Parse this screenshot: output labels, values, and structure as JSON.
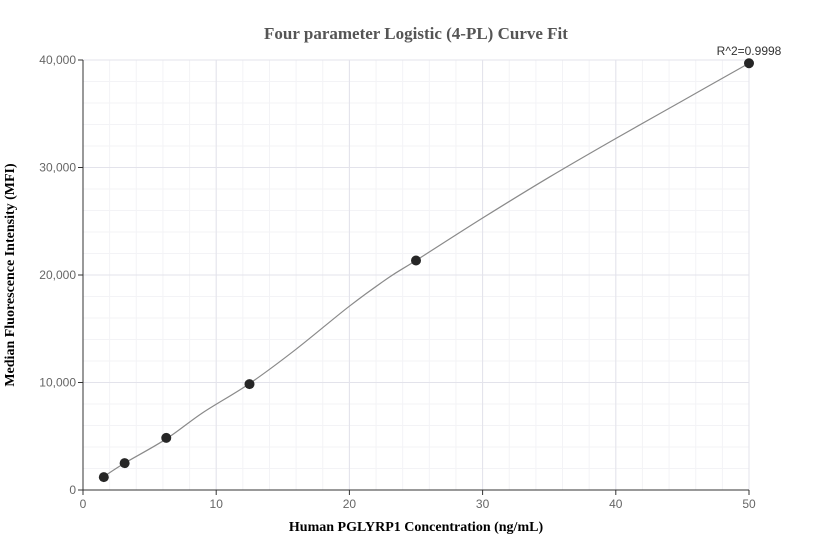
{
  "chart_data": {
    "type": "scatter",
    "title": "Four parameter Logistic (4-PL) Curve Fit",
    "xlabel": "Human PGLYRP1 Concentration (ng/mL)",
    "ylabel": "Median Fluorescence Intensity (MFI)",
    "xlim": [
      0,
      50
    ],
    "ylim": [
      0,
      40000
    ],
    "x_ticks": [
      0,
      10,
      20,
      30,
      40,
      50
    ],
    "x_tick_labels": [
      "0",
      "10",
      "20",
      "30",
      "40",
      "50"
    ],
    "y_ticks": [
      0,
      10000,
      20000,
      30000,
      40000
    ],
    "y_tick_labels": [
      "0",
      "10,000",
      "20,000",
      "30,000",
      "40,000"
    ],
    "x_minor_step": 2,
    "y_minor_step": 2000,
    "grid": true,
    "legend": "none",
    "annotation": "R^2=0.9998",
    "points": {
      "x": [
        1.5625,
        3.125,
        6.25,
        12.5,
        25,
        50
      ],
      "y": [
        1200,
        2500,
        4850,
        9850,
        21350,
        39700
      ]
    },
    "fit_curve": {
      "x": [
        1.5625,
        3.125,
        6.25,
        9,
        12.5,
        16,
        20,
        23,
        25,
        30,
        35,
        40,
        45,
        50
      ],
      "y": [
        1250,
        2500,
        4750,
        7200,
        9900,
        13100,
        17100,
        19800,
        21350,
        25300,
        29100,
        32700,
        36200,
        39700
      ]
    },
    "colors": {
      "point": "#262626",
      "curve": "#8a8a8a",
      "grid_major": "#e3e3eb",
      "grid_minor": "#f3f3f6",
      "axis": "#333333",
      "title": "#555555"
    }
  }
}
